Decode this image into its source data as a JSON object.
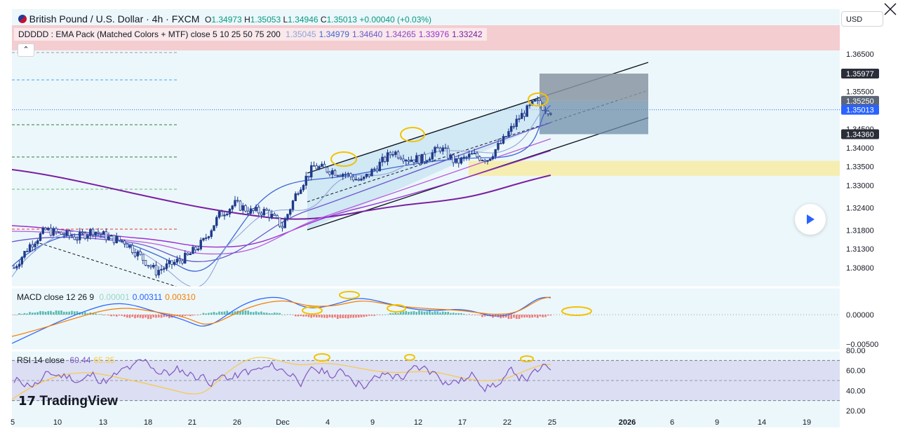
{
  "header": {
    "symbol": "British Pound / U.S. Dollar · 4h · FXCM",
    "o_label": "O",
    "o": "1.34973",
    "h_label": "H",
    "h": "1.35053",
    "l_label": "L",
    "l": "1.34946",
    "c_label": "C",
    "c": "1.35013",
    "change": "+0.00040 (+0.03%)"
  },
  "ema_legend": {
    "label": "DDDDD : EMA Pack (Matched Colors + MTF) close 5 10 25 50 75 200",
    "values": [
      "1.35045",
      "1.34979",
      "1.34640",
      "1.34265",
      "1.33976",
      "1.33242"
    ],
    "colors": [
      "#90a4d8",
      "#3f66d4",
      "#6b56c9",
      "#8a45c6",
      "#9b2fd0",
      "#7a1fa2"
    ]
  },
  "macd_legend": {
    "label": "MACD close 12 26 9",
    "values": [
      "0.00001",
      "0.00311",
      "0.00310"
    ],
    "colors": [
      "#9ad6c5",
      "#2962ff",
      "#f57c00"
    ]
  },
  "rsi_legend": {
    "label": "RSI 14 close",
    "values": [
      "60.44",
      "65.35"
    ],
    "colors": [
      "#7e57c2",
      "#f7c948"
    ]
  },
  "currency_button": "USD",
  "collapse_glyph": "⌃",
  "brand": "TradingView",
  "colors": {
    "up": "#26a69a",
    "down": "#ef5350",
    "candle": "#1e3a8a",
    "resistance_zone": "#f6c6c9",
    "support_zone": "#f7eba9",
    "panel_bg": "#ecf7fb"
  },
  "price_axis": {
    "ticks": [
      "1.36500",
      "1.35500",
      "1.34500",
      "1.34000",
      "1.33500",
      "1.33000",
      "1.32400",
      "1.31800",
      "1.31300",
      "1.30800"
    ],
    "tags": [
      {
        "value": "1.35977",
        "color": "#2a2e39"
      },
      {
        "value": "1.35250",
        "color": "#5d6677"
      },
      {
        "value": "1.35013",
        "color": "#2962ff"
      },
      {
        "value": "1.34360",
        "color": "#2a2e39"
      }
    ]
  },
  "macd_axis": {
    "ticks": [
      "0.00000",
      "−0.00500"
    ]
  },
  "rsi_axis": {
    "ticks": [
      "80.00",
      "60.00",
      "40.00",
      "20.00"
    ]
  },
  "time_axis": {
    "ticks": [
      "5",
      "10",
      "13",
      "18",
      "21",
      "26",
      "Dec",
      "4",
      "9",
      "12",
      "17",
      "22",
      "25",
      "2026",
      "6",
      "9",
      "14",
      "19"
    ]
  },
  "chart_data": {
    "type": "line",
    "symbol": "GBP/USD",
    "interval": "4h",
    "price_range": [
      1.305,
      1.368
    ],
    "price_path": [
      [
        "Nov 5",
        1.308
      ],
      [
        "Nov 7",
        1.314
      ],
      [
        "Nov 10",
        1.318
      ],
      [
        "Nov 12",
        1.317
      ],
      [
        "Nov 13",
        1.316
      ],
      [
        "Nov 14",
        1.318
      ],
      [
        "Nov 17",
        1.316
      ],
      [
        "Nov 18",
        1.315
      ],
      [
        "Nov 19",
        1.311
      ],
      [
        "Nov 20",
        1.307
      ],
      [
        "Nov 21",
        1.309
      ],
      [
        "Nov 24",
        1.311
      ],
      [
        "Nov 25",
        1.315
      ],
      [
        "Nov 26",
        1.322
      ],
      [
        "Nov 27",
        1.325
      ],
      [
        "Nov 28",
        1.323
      ],
      [
        "Dec 1",
        1.323
      ],
      [
        "Dec 2",
        1.319
      ],
      [
        "Dec 3",
        1.329
      ],
      [
        "Dec 4",
        1.335
      ],
      [
        "Dec 5",
        1.334
      ],
      [
        "Dec 8",
        1.333
      ],
      [
        "Dec 9",
        1.331
      ],
      [
        "Dec 10",
        1.335
      ],
      [
        "Dec 11",
        1.339
      ],
      [
        "Dec 12",
        1.337
      ],
      [
        "Dec 15",
        1.337
      ],
      [
        "Dec 16",
        1.34
      ],
      [
        "Dec 17",
        1.336
      ],
      [
        "Dec 18",
        1.338
      ],
      [
        "Dec 19",
        1.337
      ],
      [
        "Dec 22",
        1.342
      ],
      [
        "Dec 23",
        1.348
      ],
      [
        "Dec 24",
        1.352
      ],
      [
        "Dec 25",
        1.35
      ]
    ],
    "zones": [
      {
        "low": 1.366,
        "high": 1.369,
        "color": "#f6c6c9"
      },
      {
        "low": 1.3325,
        "high": 1.3365,
        "color": "#f7eba9"
      }
    ],
    "position": {
      "target": 1.35977,
      "entry": 1.3525,
      "stop": 1.3436
    },
    "macd": {
      "range": [
        -0.0055,
        0.0035
      ],
      "histogram": 1e-05,
      "macd": 0.00311,
      "signal": 0.0031
    },
    "rsi": {
      "range": [
        15,
        82
      ],
      "value": 60.44,
      "ma": 65.35,
      "upper": 70,
      "mid": 50,
      "lower": 30
    }
  }
}
